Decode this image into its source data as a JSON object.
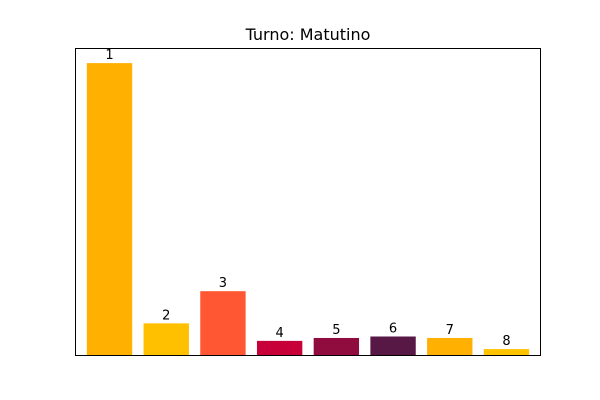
{
  "chart_data": {
    "type": "bar",
    "title": "Turno: Matutino",
    "xlabel": "",
    "ylabel": "",
    "categories": [
      "1",
      "2",
      "3",
      "4",
      "5",
      "6",
      "7",
      "8"
    ],
    "values": [
      100,
      11,
      22,
      5,
      6,
      6.5,
      6,
      2.2
    ],
    "bar_labels": [
      "1",
      "2",
      "3",
      "4",
      "5",
      "6",
      "7",
      "8"
    ],
    "colors": [
      "#FFB000",
      "#FFC000",
      "#FF5733",
      "#C70039",
      "#900C3F",
      "#581845",
      "#FFB000",
      "#FFC300"
    ],
    "ylim": [
      0,
      105
    ],
    "grid": false,
    "axis_ticks": false
  }
}
